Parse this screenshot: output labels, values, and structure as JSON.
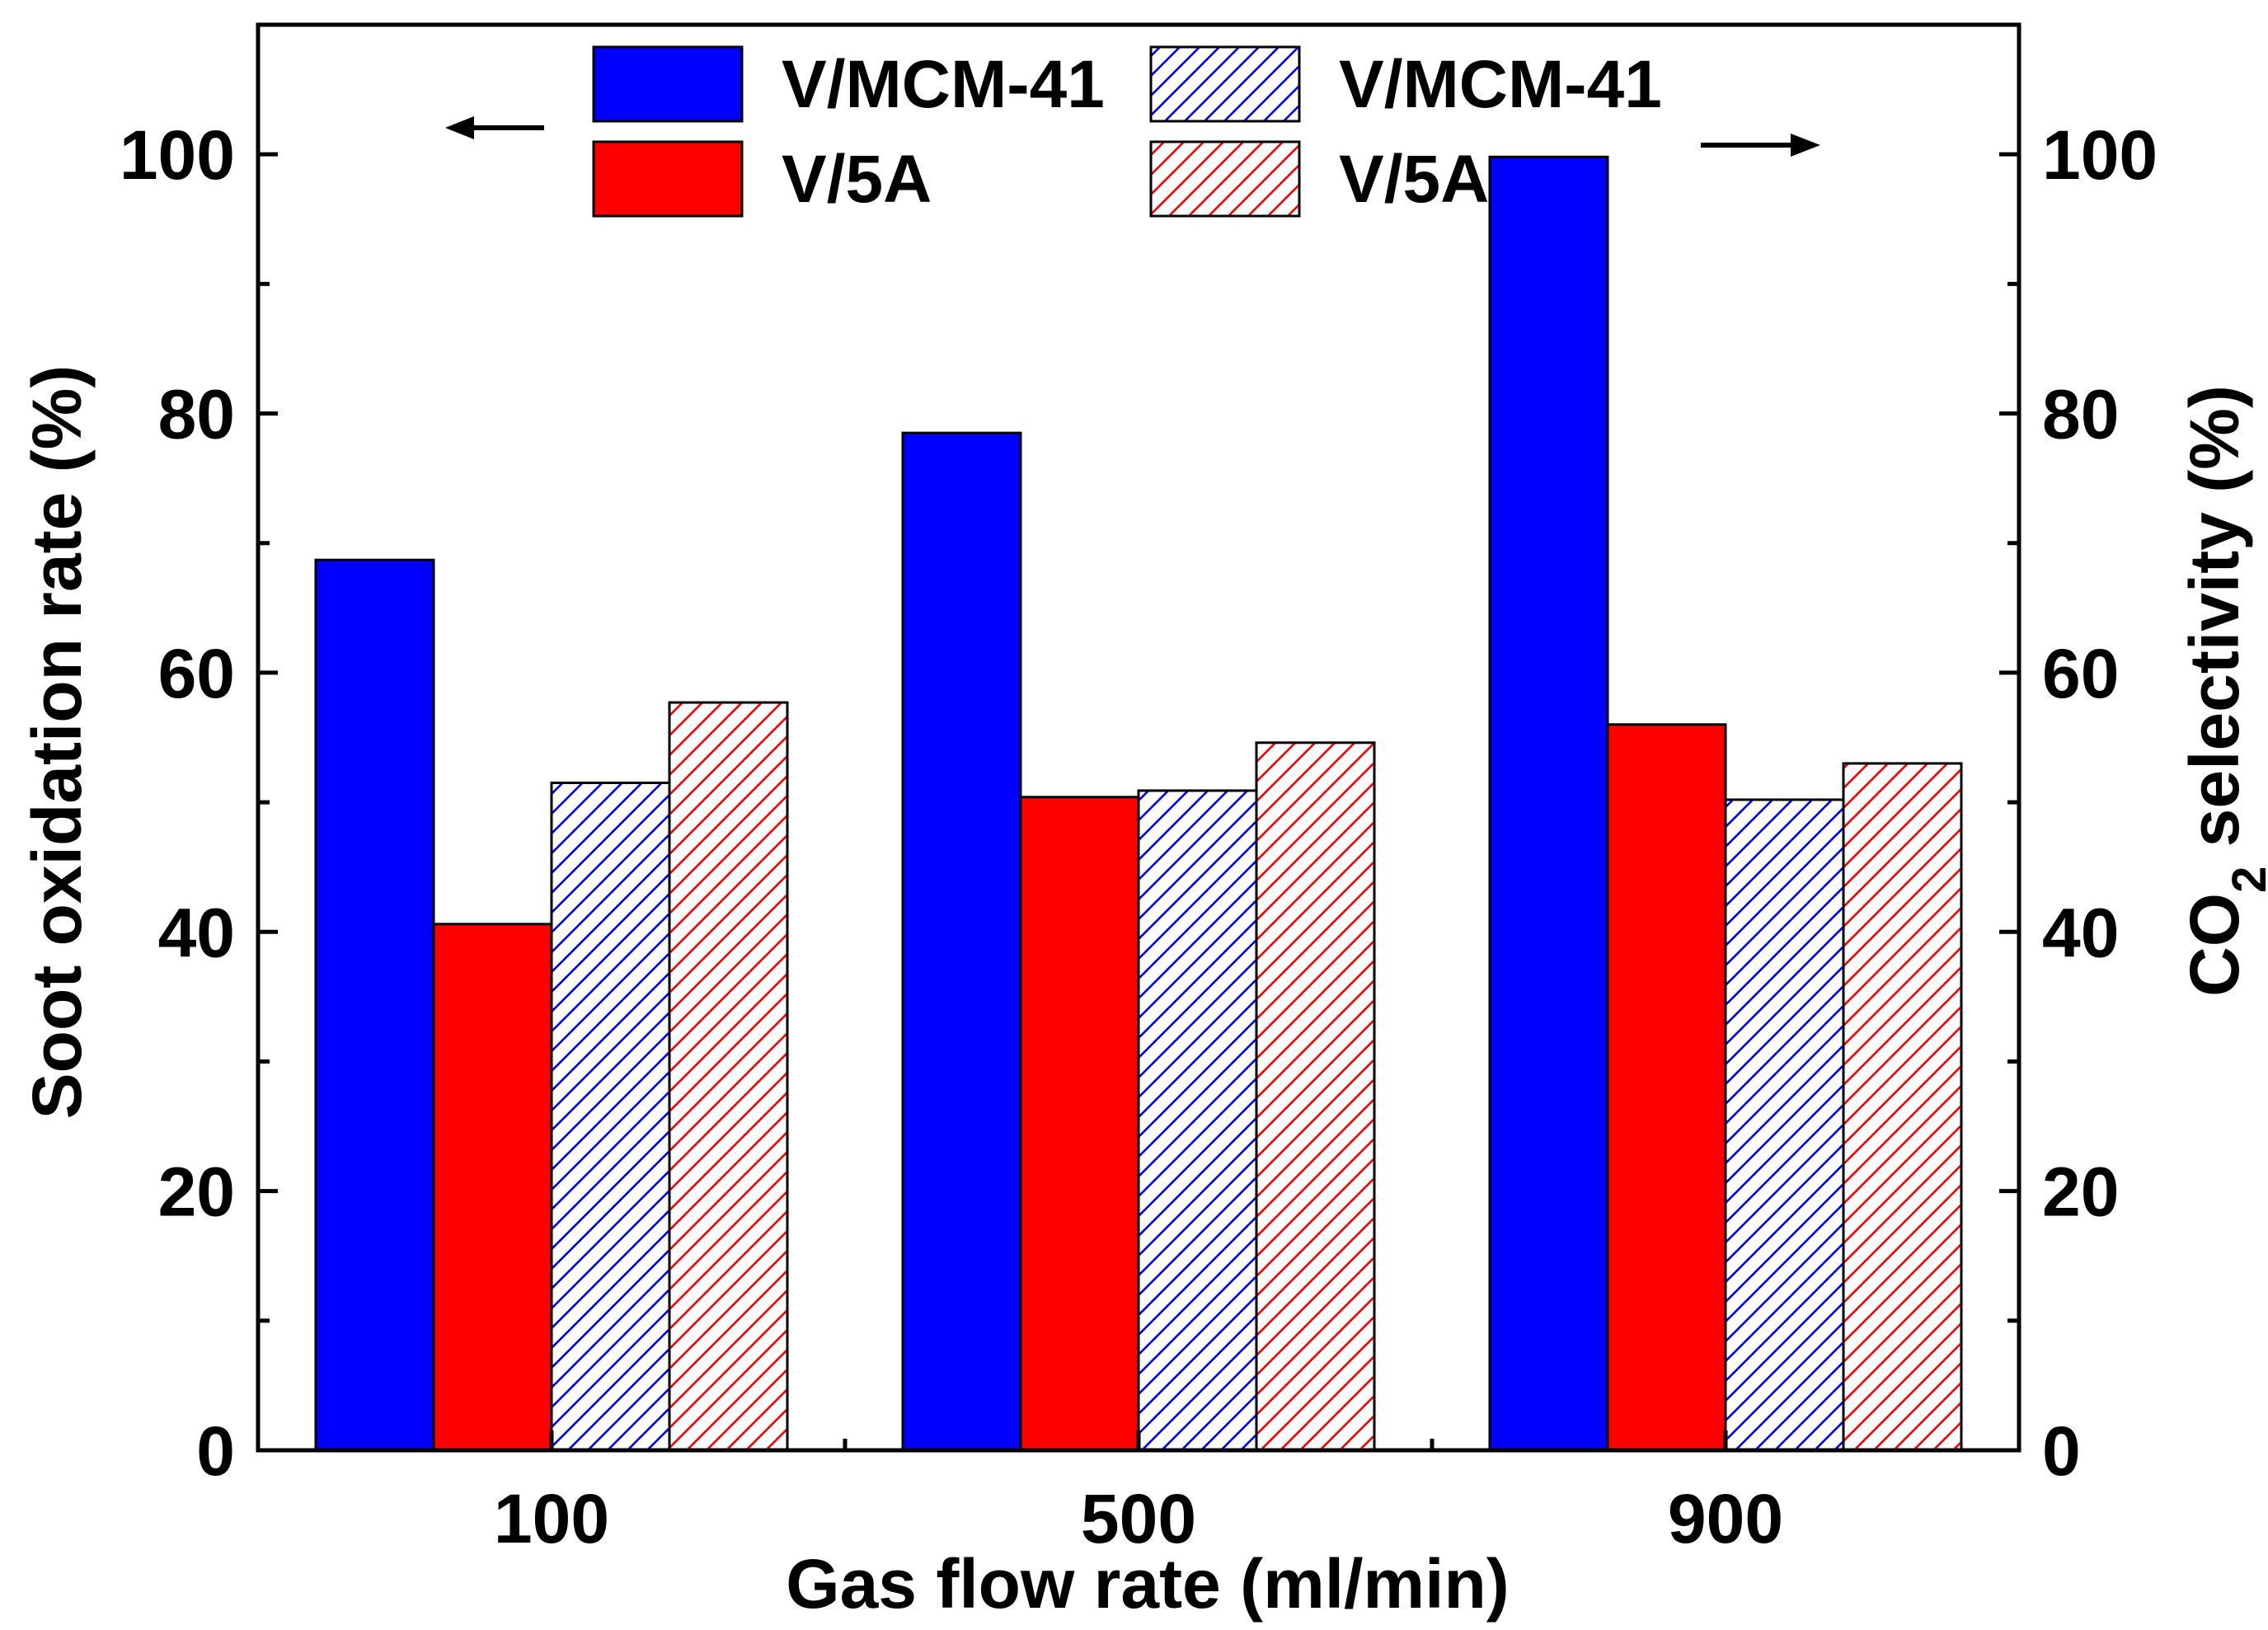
{
  "chart_data": {
    "type": "bar",
    "xlabel": "Gas flow rate (ml/min)",
    "ylabel_left": "Soot oxidation rate (%)",
    "ylabel_right": {
      "main": "CO",
      "sub": "2",
      "rest": " selectivity (%)"
    },
    "categories": [
      "100",
      "500",
      "900"
    ],
    "ylim": [
      0,
      110
    ],
    "yticks": [
      0,
      20,
      40,
      60,
      80,
      100
    ],
    "yticks_minor": [
      10,
      30,
      50,
      70,
      90
    ],
    "series": [
      {
        "name": "V/MCM-41",
        "axis": "left",
        "fill": "solid",
        "color": "#0000ff",
        "values": [
          68.7,
          78.5,
          99.8
        ]
      },
      {
        "name": "V/5A",
        "axis": "left",
        "fill": "solid",
        "color": "#ff0000",
        "values": [
          40.6,
          50.4,
          56.0
        ]
      },
      {
        "name": "V/MCM-41",
        "axis": "right",
        "fill": "hatch",
        "color": "#0000ff",
        "values": [
          51.5,
          50.9,
          50.2
        ]
      },
      {
        "name": "V/5A",
        "axis": "right",
        "fill": "hatch",
        "color": "#ff0000",
        "values": [
          57.7,
          54.6,
          53.0
        ]
      }
    ],
    "legend_position": "top-center",
    "axis_arrows": {
      "left": "←",
      "right": "→"
    }
  }
}
